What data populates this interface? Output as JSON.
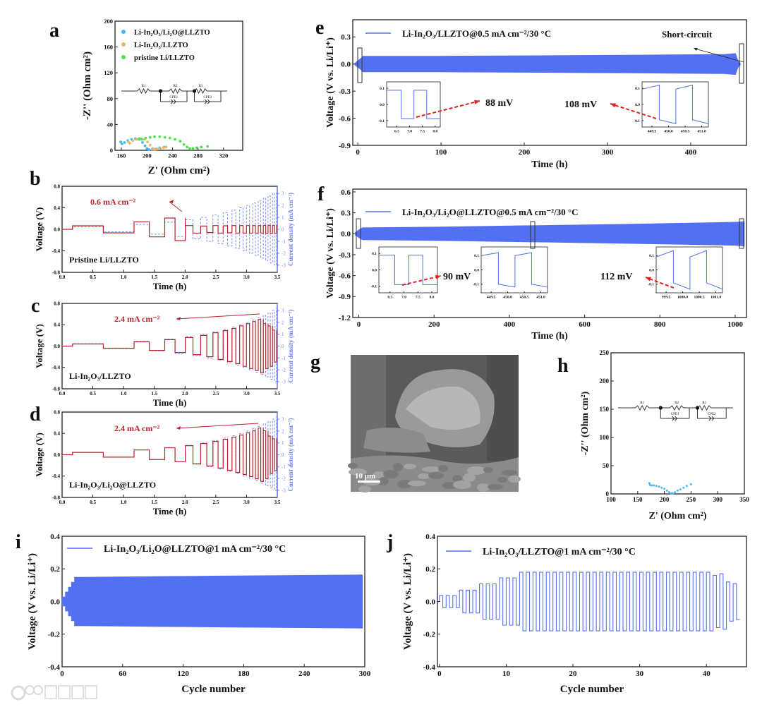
{
  "panel_labels": {
    "a": "a",
    "b": "b",
    "c": "c",
    "d": "d",
    "e": "e",
    "f": "f",
    "g": "g",
    "h": "h",
    "i": "i",
    "j": "j"
  },
  "watermark": {
    "logo": "100",
    "text": "大数跨境"
  },
  "colors": {
    "band": "#5470f2",
    "red": "#b8242b",
    "current": "#6f84f0",
    "eis_blue": "#4fb6ee",
    "eis_orange": "#e6b86c",
    "eis_green": "#4fe24f"
  },
  "chart_data": {
    "a": {
      "type": "scatter",
      "xlabel": "Z' (Ohm cm²)",
      "ylabel": "-Z'' (Ohm cm²)",
      "xlim": [
        150,
        350
      ],
      "ylim": [
        0,
        200
      ],
      "xticks": [
        "160",
        "200",
        "240",
        "280",
        "320"
      ],
      "yticks": [
        "0",
        "40",
        "80",
        "120",
        "160",
        "200"
      ],
      "circuit": [
        "R1",
        "R2",
        "R3",
        "CPE1",
        "CPE2"
      ],
      "series": [
        {
          "name": "Li-In₂O₃/Li₂O@LLZTO",
          "color": "#4fb6ee",
          "points": [
            [
              159,
              13
            ],
            [
              161,
              10
            ],
            [
              165,
              12
            ],
            [
              170,
              15
            ],
            [
              176,
              17
            ],
            [
              182,
              18
            ],
            [
              188,
              17
            ],
            [
              193,
              12
            ],
            [
              197,
              7
            ],
            [
              200,
              3
            ],
            [
              203,
              1
            ],
            [
              208,
              1
            ],
            [
              214,
              2
            ],
            [
              220,
              4
            ],
            [
              227,
              5
            ]
          ]
        },
        {
          "name": "Li-In₂O₃/LLZTO",
          "color": "#e6b86c",
          "points": [
            [
              171,
              13
            ],
            [
              173,
              11
            ],
            [
              178,
              15
            ],
            [
              184,
              17
            ],
            [
              190,
              18
            ],
            [
              196,
              17
            ],
            [
              201,
              13
            ],
            [
              205,
              8
            ],
            [
              209,
              3
            ],
            [
              212,
              1
            ],
            [
              216,
              2
            ],
            [
              221,
              3
            ],
            [
              226,
              4
            ],
            [
              230,
              5
            ]
          ]
        },
        {
          "name": "pristine Li/LLZTO",
          "color": "#4fe24f",
          "points": [
            [
              188,
              18
            ],
            [
              192,
              17
            ],
            [
              198,
              19
            ],
            [
              205,
              20
            ],
            [
              212,
              21
            ],
            [
              220,
              21
            ],
            [
              228,
              20
            ],
            [
              236,
              19
            ],
            [
              244,
              17
            ],
            [
              252,
              14
            ],
            [
              258,
              9
            ],
            [
              263,
              5
            ],
            [
              267,
              3
            ],
            [
              272,
              3
            ],
            [
              278,
              4
            ],
            [
              285,
              5
            ],
            [
              295,
              6
            ]
          ]
        }
      ]
    },
    "b": {
      "type": "line",
      "xlabel": "Time (h)",
      "ylabel": "Voltage (V)",
      "y2label": "Current density (mA cm⁻²)",
      "xlim": [
        0,
        3.5
      ],
      "ylim": [
        -0.8,
        0.8
      ],
      "y2lim": [
        -3.6,
        3.6
      ],
      "xticks": [
        "0.0",
        "0.5",
        "1.0",
        "1.5",
        "2.0",
        "2.5",
        "3.0",
        "3.5"
      ],
      "yticks": [
        "-0.8",
        "-0.4",
        "0.0",
        "0.4",
        "0.8"
      ],
      "y2ticks": [
        "-3",
        "-2",
        "-1",
        "0",
        "1",
        "2",
        "3"
      ],
      "start_h": 0.17,
      "capacity_mAh_cm2": 0.1,
      "currents_mA_cm2": [
        0.2,
        0.4,
        0.6,
        0.8,
        1.0,
        1.2,
        1.4,
        1.6,
        1.8,
        2.0,
        2.2,
        2.4,
        2.6,
        2.8,
        3.0,
        3.2
      ],
      "voltages_V": [
        0.065,
        0.14,
        0.21,
        0.07,
        0.06,
        0.07,
        0.065,
        0.07,
        0.07,
        0.07,
        0.07,
        0.07,
        0.075,
        0.075,
        0.075,
        0.075
      ],
      "annotation": "0.6 mA cm⁻²",
      "sample": "Pristine Li/LLZTO"
    },
    "c": {
      "type": "line",
      "xlabel": "Time (h)",
      "ylabel": "Voltage (V)",
      "y2label": "Current density (mA cm⁻²)",
      "xlim": [
        0,
        3.5
      ],
      "ylim": [
        -0.8,
        0.8
      ],
      "y2lim": [
        -3.6,
        3.6
      ],
      "xticks": [
        "0.0",
        "0.5",
        "1.0",
        "1.5",
        "2.0",
        "2.5",
        "3.0",
        "3.5"
      ],
      "yticks": [
        "-0.8",
        "-0.4",
        "0.0",
        "0.4",
        "0.8"
      ],
      "y2ticks": [
        "-3",
        "-2",
        "-1",
        "0",
        "1",
        "2",
        "3"
      ],
      "start_h": 0.17,
      "capacity_mAh_cm2": 0.1,
      "currents_mA_cm2": [
        0.2,
        0.4,
        0.6,
        0.8,
        1.0,
        1.2,
        1.4,
        1.6,
        1.8,
        2.0,
        2.2,
        2.4,
        2.6,
        2.8,
        3.0,
        3.2
      ],
      "voltages_V": [
        0.04,
        0.08,
        0.12,
        0.16,
        0.2,
        0.25,
        0.29,
        0.33,
        0.38,
        0.42,
        0.46,
        0.5,
        0.42,
        0.38,
        0.3,
        0.25
      ],
      "annotation": "2.4 mA cm⁻²",
      "sample": "Li-In₂O₃/LLZTO"
    },
    "d": {
      "type": "line",
      "xlabel": "Time (h)",
      "ylabel": "Voltage (V)",
      "y2label": "Current density (mA cm⁻²)",
      "xlim": [
        0,
        3.5
      ],
      "ylim": [
        -0.8,
        0.8
      ],
      "y2lim": [
        -3.6,
        3.6
      ],
      "xticks": [
        "0.0",
        "0.5",
        "1.0",
        "1.5",
        "2.0",
        "2.5",
        "3.0",
        "3.5"
      ],
      "yticks": [
        "-0.8",
        "-0.4",
        "0.0",
        "0.4",
        "0.8"
      ],
      "y2ticks": [
        "-3",
        "-2",
        "-1",
        "0",
        "1",
        "2",
        "3"
      ],
      "start_h": 0.17,
      "capacity_mAh_cm2": 0.1,
      "currents_mA_cm2": [
        0.2,
        0.4,
        0.6,
        0.8,
        1.0,
        1.2,
        1.4,
        1.6,
        1.8,
        2.0,
        2.2,
        2.4,
        2.6,
        2.8,
        3.0,
        3.2
      ],
      "voltages_V": [
        0.045,
        0.09,
        0.13,
        0.17,
        0.21,
        0.25,
        0.29,
        0.33,
        0.37,
        0.41,
        0.45,
        0.5,
        0.45,
        0.35,
        0.3,
        0.25
      ],
      "annotation": "2.4 mA cm⁻²",
      "sample": "Li-In₂O₃/Li₂O@LLZTO"
    },
    "e": {
      "type": "area",
      "xlabel": "Time (h)",
      "ylabel": "Voltage (V vs. Li/Li⁺)",
      "xlim": [
        -6,
        467
      ],
      "ylim": [
        -0.9,
        0.49
      ],
      "xticks": [
        "0",
        "100",
        "200",
        "300",
        "400"
      ],
      "yticks": [
        "-0.9",
        "-0.6",
        "-0.3",
        "0.0",
        "0.3"
      ],
      "legend": "Li-In₂O₃/LLZTO@0.5 mA cm⁻²/30 °C",
      "envelope": [
        [
          -4,
          0.01
        ],
        [
          0,
          0.04
        ],
        [
          3,
          0.06
        ],
        [
          6,
          0.09
        ],
        [
          100,
          0.09
        ],
        [
          300,
          0.1
        ],
        [
          440,
          0.11
        ],
        [
          454,
          0.12
        ],
        [
          457,
          0.04
        ],
        [
          460,
          0.01
        ]
      ],
      "callouts": [
        "88 mV",
        "108 mV",
        "Short-circuit"
      ],
      "insets": [
        {
          "xlim": [
            6.1,
            8.2
          ],
          "ylim": [
            -0.14,
            0.14
          ],
          "xticks": [
            "6.5",
            "7.0",
            "7.5",
            "8.0"
          ],
          "yticks": [
            "-0.1",
            "0.0",
            "0.1"
          ],
          "amp": 0.088,
          "drift": 0,
          "start_sign": 1,
          "switches": [
            6.67,
            7.17,
            7.67
          ]
        },
        {
          "xlim": [
            449.2,
            451.2
          ],
          "ylim": [
            -0.14,
            0.14
          ],
          "xticks": [
            "449.5",
            "450.0",
            "450.5",
            "451.0"
          ],
          "yticks": [
            "-0.1",
            "0.0",
            "0.1"
          ],
          "amp": 0.095,
          "drift": 0.025,
          "start_sign": 1,
          "switches": [
            449.72,
            450.22,
            450.72
          ]
        }
      ]
    },
    "f": {
      "type": "area",
      "xlabel": "Time (h)",
      "ylabel": "Voltage (V vs. Li/Li⁺)",
      "xlim": [
        -16,
        1030
      ],
      "ylim": [
        -1.2,
        0.64
      ],
      "xticks": [
        "0",
        "200",
        "400",
        "600",
        "800",
        "1000"
      ],
      "yticks": [
        "-1.2",
        "-0.9",
        "-0.6",
        "-0.3",
        "0.0",
        "0.3",
        "0.6"
      ],
      "legend": "Li-In₂O₃/Li₂O@LLZTO@0.5 mA cm⁻²/30 °C",
      "envelope": [
        [
          -10,
          0.02
        ],
        [
          0,
          0.06
        ],
        [
          10,
          0.09
        ],
        [
          200,
          0.1
        ],
        [
          450,
          0.12
        ],
        [
          700,
          0.14
        ],
        [
          1000,
          0.17
        ],
        [
          1025,
          0.18
        ]
      ],
      "callouts": [
        "90 mV",
        "112 mV"
      ],
      "insets": [
        {
          "xlim": [
            6.1,
            8.2
          ],
          "ylim": [
            -0.14,
            0.14
          ],
          "xticks": [
            "6.5",
            "7.0",
            "7.5",
            "8.0"
          ],
          "yticks": [
            "-0.1",
            "0.0",
            "0.1"
          ],
          "amp": 0.09,
          "drift": 0,
          "start_sign": 1,
          "switches": [
            6.67,
            7.17,
            7.67
          ]
        },
        {
          "xlim": [
            449.2,
            451.2
          ],
          "ylim": [
            -0.16,
            0.16
          ],
          "xticks": [
            "449.5",
            "450.0",
            "450.5",
            "451.0"
          ],
          "yticks": [
            "-0.1",
            "0.0",
            "0.1"
          ],
          "amp": 0.1,
          "drift": 0.02,
          "start_sign": 1,
          "switches": [
            449.72,
            450.22,
            450.72
          ]
        },
        {
          "xlim": [
            999.2,
            1001.2
          ],
          "ylim": [
            -0.16,
            0.16
          ],
          "xticks": [
            "999.5",
            "1000.0",
            "1000.5",
            "1001.0"
          ],
          "yticks": [
            "-0.1",
            "0.0",
            "0.1"
          ],
          "amp": 0.09,
          "drift": 0.045,
          "start_sign": 1,
          "switches": [
            999.72,
            1000.22,
            1000.72
          ]
        }
      ]
    },
    "g": {
      "type": "image",
      "scale_bar": "10 μm"
    },
    "h": {
      "type": "scatter",
      "xlabel": "Z' (Ohm cm²)",
      "ylabel": "-Z'' (Ohm cm²)",
      "xlim": [
        100,
        350
      ],
      "ylim": [
        0,
        250
      ],
      "xticks": [
        "100",
        "150",
        "200",
        "250",
        "300",
        "350"
      ],
      "yticks": [
        "0",
        "50",
        "100",
        "150",
        "200",
        "250"
      ],
      "circuit": [
        "R1",
        "R2",
        "R3",
        "CPE1",
        "CPE2"
      ],
      "series": [
        {
          "name": "Li-In₂O₃/Li₂O@LLZTO",
          "color": "#4fb6ee",
          "points": [
            [
              172,
              19
            ],
            [
              173,
              16
            ],
            [
              176,
              15
            ],
            [
              180,
              15
            ],
            [
              185,
              14
            ],
            [
              190,
              13
            ],
            [
              195,
              11
            ],
            [
              200,
              9
            ],
            [
              205,
              6
            ],
            [
              209,
              3
            ],
            [
              213,
              1
            ],
            [
              216,
              1
            ],
            [
              220,
              3
            ],
            [
              225,
              6
            ],
            [
              230,
              8
            ],
            [
              236,
              11
            ],
            [
              242,
              14
            ],
            [
              250,
              17
            ]
          ]
        }
      ]
    },
    "i": {
      "type": "area",
      "xlabel": "Cycle number",
      "ylabel": "Voltage (V vs. Li/Li⁺)",
      "xlim": [
        0,
        300
      ],
      "ylim": [
        -0.4,
        0.4
      ],
      "xticks": [
        "0",
        "60",
        "120",
        "180",
        "240",
        "300"
      ],
      "yticks": [
        "-0.4",
        "-0.2",
        "0.0",
        "0.2",
        "0.4"
      ],
      "legend": "Li-In₂O₃/Li₂O@LLZTO@1 mA cm⁻²/30 °C",
      "envelope": [
        [
          0,
          0.03
        ],
        [
          3,
          0.03
        ],
        [
          3,
          0.06
        ],
        [
          6,
          0.06
        ],
        [
          6,
          0.09
        ],
        [
          9,
          0.09
        ],
        [
          9,
          0.12
        ],
        [
          12,
          0.12
        ],
        [
          12,
          0.15
        ],
        [
          150,
          0.158
        ],
        [
          298,
          0.165
        ]
      ]
    },
    "j": {
      "type": "line",
      "xlabel": "Cycle number",
      "ylabel": "Voltage (V vs. Li/Li⁺)",
      "xlim": [
        -0.3,
        46
      ],
      "ylim": [
        -0.4,
        0.4
      ],
      "xticks": [
        "0",
        "10",
        "20",
        "30",
        "40"
      ],
      "yticks": [
        "-0.4",
        "-0.2",
        "0.0",
        "0.2",
        "0.4"
      ],
      "legend": "Li-In₂O₃/LLZTO@1 mA cm⁻²/30 °C",
      "cycle_amplitudes_V": [
        0.037,
        0.037,
        0.037,
        0.07,
        0.07,
        0.07,
        0.108,
        0.108,
        0.108,
        0.145,
        0.145,
        0.145,
        0.18,
        0.18,
        0.18,
        0.18,
        0.18,
        0.18,
        0.18,
        0.18,
        0.18,
        0.18,
        0.18,
        0.18,
        0.18,
        0.18,
        0.18,
        0.18,
        0.18,
        0.18,
        0.18,
        0.18,
        0.18,
        0.18,
        0.18,
        0.18,
        0.18,
        0.18,
        0.18,
        0.18,
        0.18,
        0.16,
        0.17,
        0.12,
        0.11
      ]
    }
  }
}
